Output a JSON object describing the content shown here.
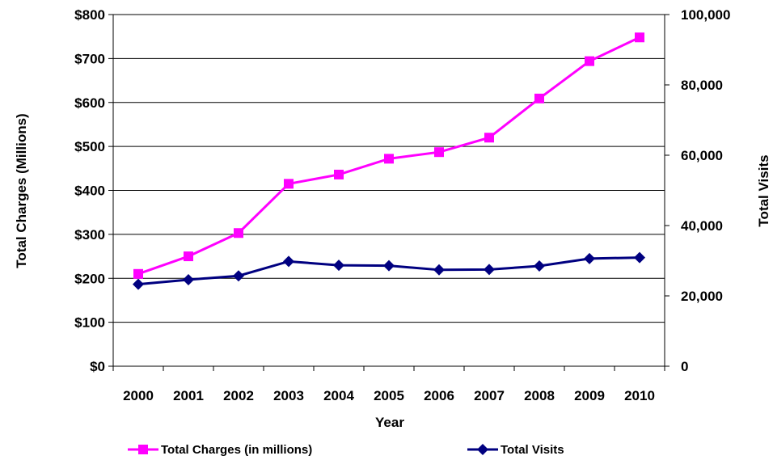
{
  "chart_data": {
    "type": "line",
    "xlabel": "Year",
    "ylabel_left": "Total Charges (Millions)",
    "ylabel_right": "Total Visits",
    "categories": [
      "2000",
      "2001",
      "2002",
      "2003",
      "2004",
      "2005",
      "2006",
      "2007",
      "2008",
      "2009",
      "2010"
    ],
    "y_left": {
      "lim": [
        0,
        800
      ],
      "ticks": [
        0,
        100,
        200,
        300,
        400,
        500,
        600,
        700,
        800
      ],
      "tick_labels": [
        "$0",
        "$100",
        "$200",
        "$300",
        "$400",
        "$500",
        "$600",
        "$700",
        "$800"
      ]
    },
    "y_right": {
      "lim": [
        0,
        100000
      ],
      "ticks": [
        0,
        20000,
        40000,
        60000,
        80000,
        100000
      ],
      "tick_labels": [
        "0",
        "20,000",
        "40,000",
        "60,000",
        "80,000",
        "100,000"
      ]
    },
    "grid": true,
    "legend_position": "bottom",
    "series": [
      {
        "name": "Total Charges (in millions)",
        "axis": "left",
        "color": "#ff00ff",
        "marker": "square",
        "values": [
          210,
          250,
          303,
          415,
          436,
          472,
          487,
          520,
          609,
          694,
          748
        ]
      },
      {
        "name": "Total Visits",
        "axis": "right",
        "color": "#000080",
        "marker": "diamond",
        "values": [
          23300,
          24600,
          25700,
          29800,
          28700,
          28600,
          27400,
          27500,
          28500,
          30600,
          30900
        ]
      }
    ]
  }
}
